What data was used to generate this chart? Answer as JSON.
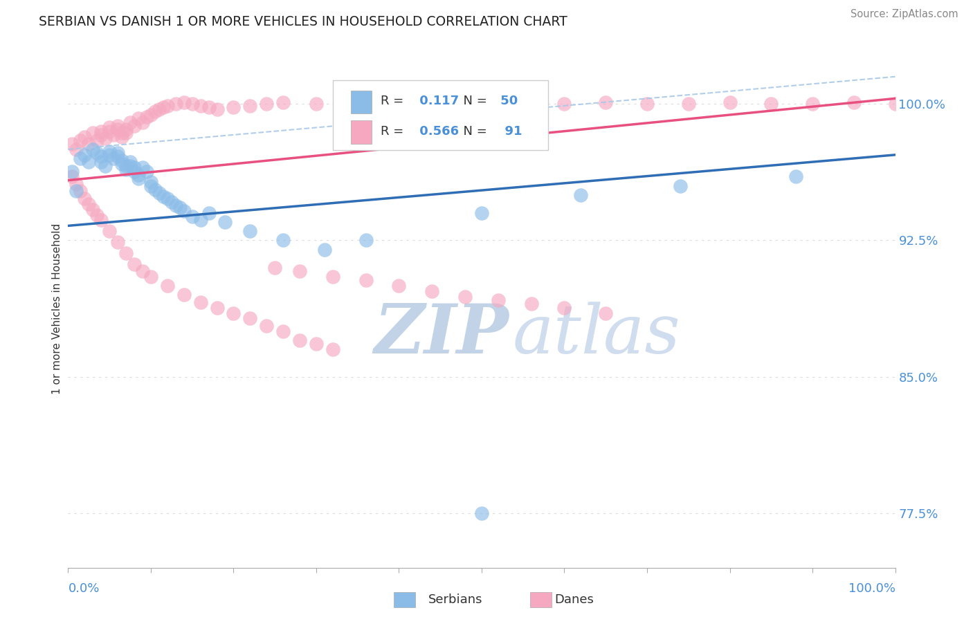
{
  "title": "SERBIAN VS DANISH 1 OR MORE VEHICLES IN HOUSEHOLD CORRELATION CHART",
  "source_text": "Source: ZipAtlas.com",
  "ylabel": "1 or more Vehicles in Household",
  "xlim": [
    0.0,
    1.0
  ],
  "ylim": [
    0.745,
    1.03
  ],
  "yticks": [
    0.775,
    0.85,
    0.925,
    1.0
  ],
  "ytick_labels": [
    "77.5%",
    "85.0%",
    "92.5%",
    "100.0%"
  ],
  "legend_R_serbian": "0.117",
  "legend_N_serbian": "50",
  "legend_R_danish": "0.566",
  "legend_N_danish": "91",
  "serbian_color": "#8bbce8",
  "danish_color": "#f5a8c0",
  "serbian_line_color": "#2f6db5",
  "danish_line_color": "#e85080",
  "dashed_line_color": "#a8c8e8",
  "watermark_zip_color": "#c5d8ef",
  "watermark_atlas_color": "#b8cfe8",
  "background_color": "#ffffff",
  "serbian_trend_x0": 0.0,
  "serbian_trend_y0": 0.933,
  "serbian_trend_x1": 1.0,
  "serbian_trend_y1": 0.972,
  "danish_trend_x0": 0.0,
  "danish_trend_y0": 0.958,
  "danish_trend_x1": 1.0,
  "danish_trend_y1": 1.003,
  "dashed_trend_x0": 0.0,
  "dashed_trend_y0": 0.975,
  "dashed_trend_x1": 1.0,
  "dashed_trend_y1": 1.015,
  "serbian_data_x": [
    0.005,
    0.01,
    0.015,
    0.02,
    0.025,
    0.03,
    0.035,
    0.04,
    0.04,
    0.045,
    0.05,
    0.05,
    0.055,
    0.06,
    0.06,
    0.065,
    0.065,
    0.07,
    0.07,
    0.075,
    0.075,
    0.08,
    0.08,
    0.085,
    0.085,
    0.09,
    0.095,
    0.1,
    0.1,
    0.105,
    0.11,
    0.115,
    0.12,
    0.125,
    0.13,
    0.135,
    0.14,
    0.15,
    0.16,
    0.17,
    0.19,
    0.22,
    0.26,
    0.31,
    0.36,
    0.5,
    0.62,
    0.74,
    0.88,
    0.5
  ],
  "serbian_data_y": [
    0.963,
    0.952,
    0.97,
    0.972,
    0.968,
    0.975,
    0.973,
    0.971,
    0.968,
    0.966,
    0.974,
    0.972,
    0.97,
    0.973,
    0.971,
    0.969,
    0.967,
    0.966,
    0.964,
    0.968,
    0.966,
    0.965,
    0.963,
    0.961,
    0.959,
    0.965,
    0.963,
    0.957,
    0.955,
    0.953,
    0.951,
    0.949,
    0.948,
    0.946,
    0.944,
    0.943,
    0.941,
    0.938,
    0.936,
    0.94,
    0.935,
    0.93,
    0.925,
    0.92,
    0.925,
    0.94,
    0.95,
    0.955,
    0.96,
    0.775
  ],
  "danish_data_x": [
    0.005,
    0.01,
    0.015,
    0.02,
    0.025,
    0.03,
    0.035,
    0.04,
    0.04,
    0.045,
    0.05,
    0.05,
    0.055,
    0.06,
    0.06,
    0.065,
    0.065,
    0.07,
    0.07,
    0.075,
    0.08,
    0.085,
    0.09,
    0.095,
    0.1,
    0.105,
    0.11,
    0.115,
    0.12,
    0.13,
    0.14,
    0.15,
    0.16,
    0.17,
    0.18,
    0.2,
    0.22,
    0.24,
    0.26,
    0.3,
    0.35,
    0.4,
    0.45,
    0.5,
    0.55,
    0.6,
    0.65,
    0.7,
    0.75,
    0.8,
    0.85,
    0.9,
    0.95,
    1.0,
    0.005,
    0.01,
    0.015,
    0.02,
    0.025,
    0.03,
    0.035,
    0.04,
    0.05,
    0.06,
    0.07,
    0.08,
    0.09,
    0.1,
    0.12,
    0.14,
    0.16,
    0.18,
    0.2,
    0.22,
    0.24,
    0.26,
    0.28,
    0.3,
    0.32,
    0.25,
    0.28,
    0.32,
    0.36,
    0.4,
    0.44,
    0.48,
    0.52,
    0.56,
    0.6,
    0.65
  ],
  "danish_data_y": [
    0.978,
    0.975,
    0.98,
    0.982,
    0.978,
    0.984,
    0.98,
    0.985,
    0.983,
    0.981,
    0.987,
    0.985,
    0.983,
    0.988,
    0.986,
    0.984,
    0.982,
    0.986,
    0.984,
    0.99,
    0.988,
    0.992,
    0.99,
    0.993,
    0.994,
    0.996,
    0.997,
    0.998,
    0.999,
    1.0,
    1.001,
    1.0,
    0.999,
    0.998,
    0.997,
    0.998,
    0.999,
    1.0,
    1.001,
    1.0,
    0.999,
    1.0,
    1.001,
    1.0,
    0.999,
    1.0,
    1.001,
    1.0,
    1.0,
    1.001,
    1.0,
    1.0,
    1.001,
    1.0,
    0.96,
    0.956,
    0.952,
    0.948,
    0.945,
    0.942,
    0.939,
    0.936,
    0.93,
    0.924,
    0.918,
    0.912,
    0.908,
    0.905,
    0.9,
    0.895,
    0.891,
    0.888,
    0.885,
    0.882,
    0.878,
    0.875,
    0.87,
    0.868,
    0.865,
    0.91,
    0.908,
    0.905,
    0.903,
    0.9,
    0.897,
    0.894,
    0.892,
    0.89,
    0.888,
    0.885
  ]
}
